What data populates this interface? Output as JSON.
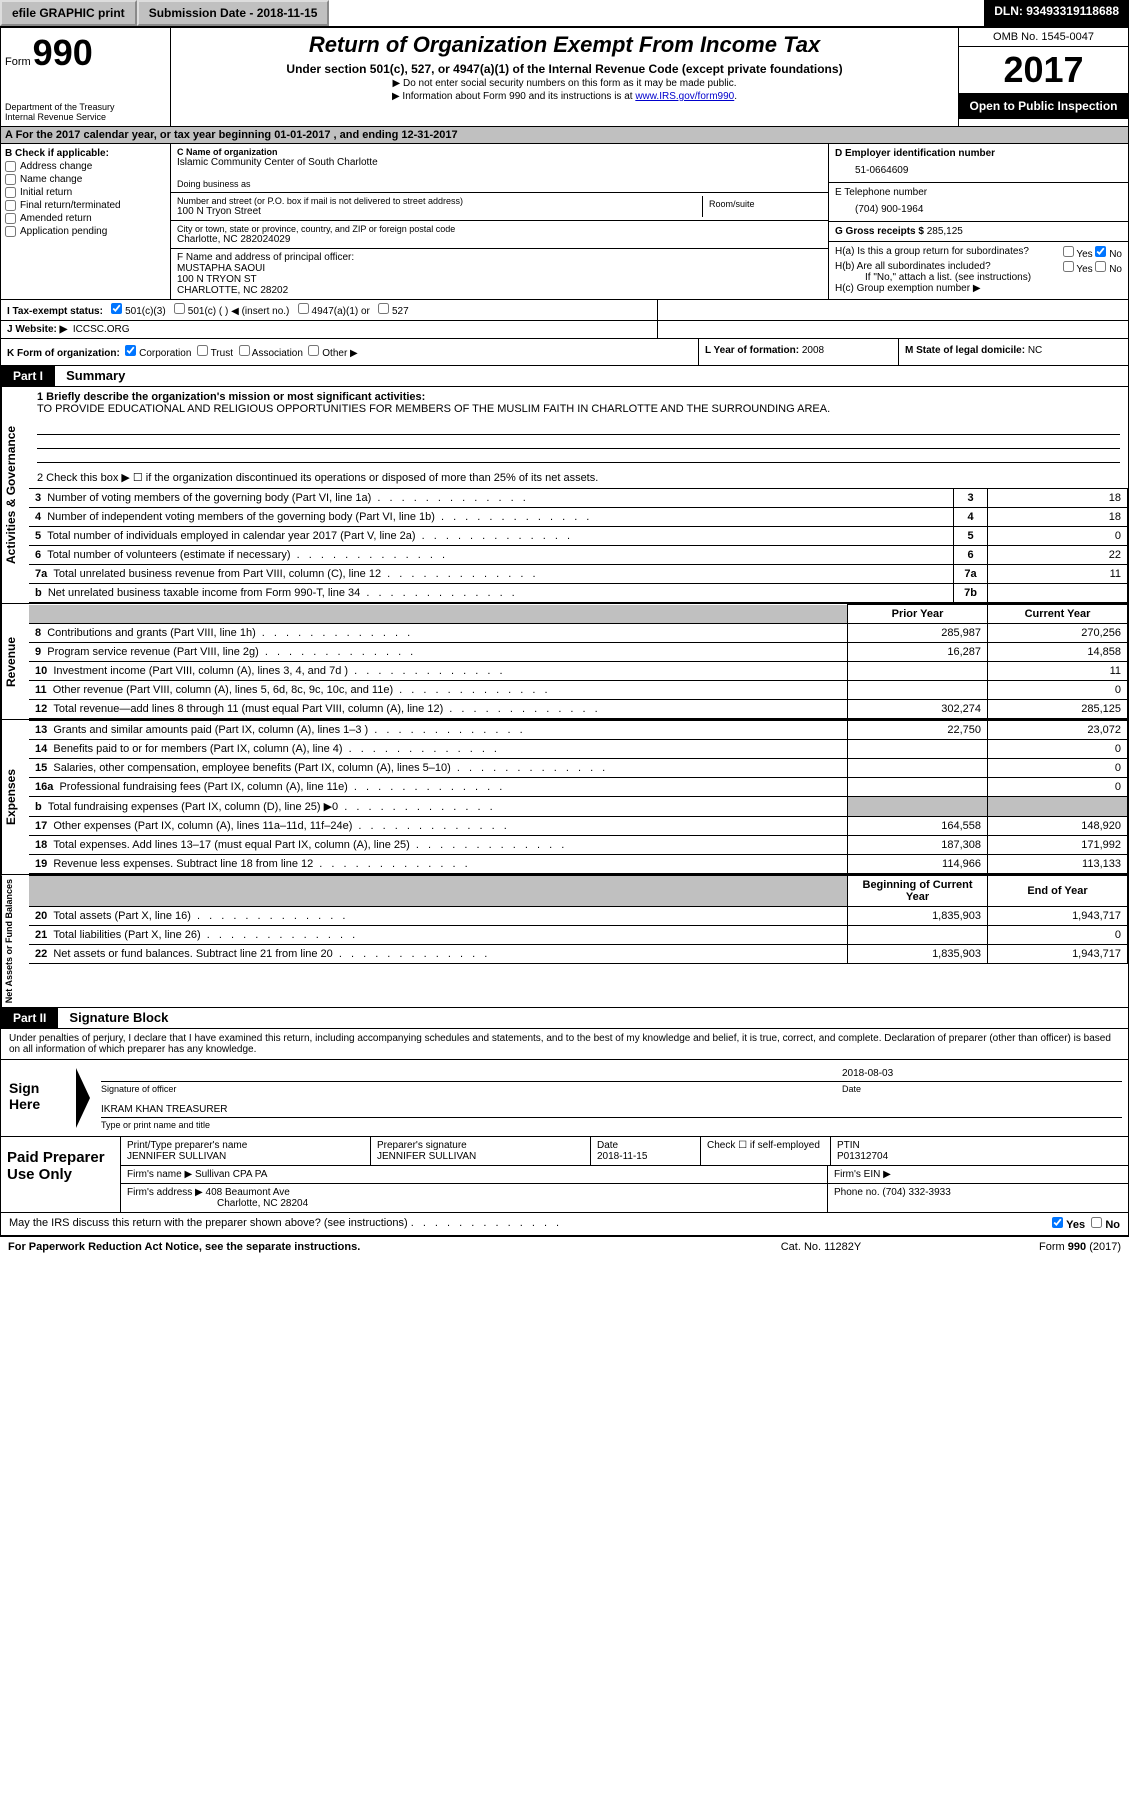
{
  "topbar": {
    "efile": "efile GRAPHIC print",
    "submission": "Submission Date - 2018-11-15",
    "dln": "DLN: 93493319118688"
  },
  "header": {
    "form_label": "Form",
    "form_number": "990",
    "dept1": "Department of the Treasury",
    "dept2": "Internal Revenue Service",
    "title": "Return of Organization Exempt From Income Tax",
    "subtitle": "Under section 501(c), 527, or 4947(a)(1) of the Internal Revenue Code (except private foundations)",
    "note1": "▶ Do not enter social security numbers on this form as it may be made public.",
    "note2_pre": "▶ Information about Form 990 and its instructions is at ",
    "note2_link": "www.IRS.gov/form990",
    "omb": "OMB No. 1545-0047",
    "year": "2017",
    "inspect": "Open to Public Inspection"
  },
  "row_a": "A  For the 2017 calendar year, or tax year beginning 01-01-2017   , and ending 12-31-2017",
  "col_b": {
    "hdr": "B Check if applicable:",
    "items": [
      "Address change",
      "Name change",
      "Initial return",
      "Final return/terminated",
      "Amended return",
      "Application pending"
    ]
  },
  "col_c": {
    "name_label": "C Name of organization",
    "name": "Islamic Community Center of South Charlotte",
    "dba_label": "Doing business as",
    "dba": "",
    "street_label": "Number and street (or P.O. box if mail is not delivered to street address)",
    "room_label": "Room/suite",
    "street": "100 N Tryon Street",
    "city_label": "City or town, state or province, country, and ZIP or foreign postal code",
    "city": "Charlotte, NC  282024029",
    "officer_label": "F Name and address of principal officer:",
    "officer_name": "MUSTAPHA SAOUI",
    "officer_addr1": "100 N TRYON ST",
    "officer_addr2": "CHARLOTTE, NC  28202"
  },
  "col_d": {
    "ein_label": "D Employer identification number",
    "ein": "51-0664609",
    "tel_label": "E Telephone number",
    "tel": "(704) 900-1964",
    "gross_label": "G Gross receipts $",
    "gross": "285,125",
    "ha": "H(a)  Is this a group return for subordinates?",
    "hb": "H(b)  Are all subordinates included?",
    "hb_note": "If \"No,\" attach a list. (see instructions)",
    "hc": "H(c)  Group exemption number ▶",
    "yes": "Yes",
    "no": "No"
  },
  "row_i": {
    "label": "I  Tax-exempt status:",
    "opts": [
      "501(c)(3)",
      "501(c) (  ) ◀ (insert no.)",
      "4947(a)(1) or",
      "527"
    ]
  },
  "row_j": {
    "label": "J  Website: ▶",
    "val": "ICCSC.ORG"
  },
  "row_k": {
    "label": "K Form of organization:",
    "opts": [
      "Corporation",
      "Trust",
      "Association",
      "Other ▶"
    ],
    "l_label": "L Year of formation:",
    "l_val": "2008",
    "m_label": "M State of legal domicile:",
    "m_val": "NC"
  },
  "part1": {
    "hdr": "Part I",
    "title": "Summary",
    "vtab1": "Activities & Governance",
    "vtab2": "Revenue",
    "vtab3": "Expenses",
    "vtab4": "Net Assets or Fund Balances",
    "line1_label": "1 Briefly describe the organization's mission or most significant activities:",
    "mission": "TO PROVIDE EDUCATIONAL AND RELIGIOUS OPPORTUNITIES FOR MEMBERS OF THE MUSLIM FAITH IN CHARLOTTE AND THE SURROUNDING AREA.",
    "line2": "2  Check this box ▶ ☐  if the organization discontinued its operations or disposed of more than 25% of its net assets.",
    "lines_gov": [
      {
        "n": "3",
        "t": "Number of voting members of the governing body (Part VI, line 1a)",
        "box": "3",
        "v": "18"
      },
      {
        "n": "4",
        "t": "Number of independent voting members of the governing body (Part VI, line 1b)",
        "box": "4",
        "v": "18"
      },
      {
        "n": "5",
        "t": "Total number of individuals employed in calendar year 2017 (Part V, line 2a)",
        "box": "5",
        "v": "0"
      },
      {
        "n": "6",
        "t": "Total number of volunteers (estimate if necessary)",
        "box": "6",
        "v": "22"
      },
      {
        "n": "7a",
        "t": "Total unrelated business revenue from Part VIII, column (C), line 12",
        "box": "7a",
        "v": "11"
      },
      {
        "n": "b",
        "t": "Net unrelated business taxable income from Form 990-T, line 34",
        "box": "7b",
        "v": ""
      }
    ],
    "col_prior": "Prior Year",
    "col_current": "Current Year",
    "lines_rev": [
      {
        "n": "8",
        "t": "Contributions and grants (Part VIII, line 1h)",
        "p": "285,987",
        "c": "270,256"
      },
      {
        "n": "9",
        "t": "Program service revenue (Part VIII, line 2g)",
        "p": "16,287",
        "c": "14,858"
      },
      {
        "n": "10",
        "t": "Investment income (Part VIII, column (A), lines 3, 4, and 7d )",
        "p": "",
        "c": "11"
      },
      {
        "n": "11",
        "t": "Other revenue (Part VIII, column (A), lines 5, 6d, 8c, 9c, 10c, and 11e)",
        "p": "",
        "c": "0"
      },
      {
        "n": "12",
        "t": "Total revenue—add lines 8 through 11 (must equal Part VIII, column (A), line 12)",
        "p": "302,274",
        "c": "285,125"
      }
    ],
    "lines_exp": [
      {
        "n": "13",
        "t": "Grants and similar amounts paid (Part IX, column (A), lines 1–3 )",
        "p": "22,750",
        "c": "23,072"
      },
      {
        "n": "14",
        "t": "Benefits paid to or for members (Part IX, column (A), line 4)",
        "p": "",
        "c": "0"
      },
      {
        "n": "15",
        "t": "Salaries, other compensation, employee benefits (Part IX, column (A), lines 5–10)",
        "p": "",
        "c": "0"
      },
      {
        "n": "16a",
        "t": "Professional fundraising fees (Part IX, column (A), line 11e)",
        "p": "",
        "c": "0"
      },
      {
        "n": "b",
        "t": "Total fundraising expenses (Part IX, column (D), line 25) ▶0",
        "p": "GRAY",
        "c": "GRAY"
      },
      {
        "n": "17",
        "t": "Other expenses (Part IX, column (A), lines 11a–11d, 11f–24e)",
        "p": "164,558",
        "c": "148,920"
      },
      {
        "n": "18",
        "t": "Total expenses. Add lines 13–17 (must equal Part IX, column (A), line 25)",
        "p": "187,308",
        "c": "171,992"
      },
      {
        "n": "19",
        "t": "Revenue less expenses. Subtract line 18 from line 12",
        "p": "114,966",
        "c": "113,133"
      }
    ],
    "col_begin": "Beginning of Current Year",
    "col_end": "End of Year",
    "lines_net": [
      {
        "n": "20",
        "t": "Total assets (Part X, line 16)",
        "p": "1,835,903",
        "c": "1,943,717"
      },
      {
        "n": "21",
        "t": "Total liabilities (Part X, line 26)",
        "p": "",
        "c": "0"
      },
      {
        "n": "22",
        "t": "Net assets or fund balances. Subtract line 21 from line 20",
        "p": "1,835,903",
        "c": "1,943,717"
      }
    ]
  },
  "part2": {
    "hdr": "Part II",
    "title": "Signature Block",
    "intro": "Under penalties of perjury, I declare that I have examined this return, including accompanying schedules and statements, and to the best of my knowledge and belief, it is true, correct, and complete. Declaration of preparer (other than officer) is based on all information of which preparer has any knowledge.",
    "sign_here": "Sign Here",
    "sig_officer": "Signature of officer",
    "sig_date_label": "Date",
    "sig_date": "2018-08-03",
    "sig_name": "IKRAM KHAN  TREASURER",
    "sig_name_label": "Type or print name and title",
    "paid_label": "Paid Preparer Use Only",
    "prep_name_label": "Print/Type preparer's name",
    "prep_name": "JENNIFER SULLIVAN",
    "prep_sig_label": "Preparer's signature",
    "prep_sig": "JENNIFER SULLIVAN",
    "prep_date_label": "Date",
    "prep_date": "2018-11-15",
    "prep_check": "Check ☐ if self-employed",
    "ptin_label": "PTIN",
    "ptin": "P01312704",
    "firm_name_label": "Firm's name    ▶",
    "firm_name": "Sullivan CPA PA",
    "firm_ein_label": "Firm's EIN ▶",
    "firm_addr_label": "Firm's address ▶",
    "firm_addr1": "408 Beaumont Ave",
    "firm_addr2": "Charlotte, NC  28204",
    "firm_phone_label": "Phone no.",
    "firm_phone": "(704) 332-3933",
    "discuss": "May the IRS discuss this return with the preparer shown above? (see instructions)",
    "discuss_yes": "Yes",
    "discuss_no": "No"
  },
  "footer": {
    "left": "For Paperwork Reduction Act Notice, see the separate instructions.",
    "mid": "Cat. No. 11282Y",
    "right": "Form 990 (2017)"
  }
}
